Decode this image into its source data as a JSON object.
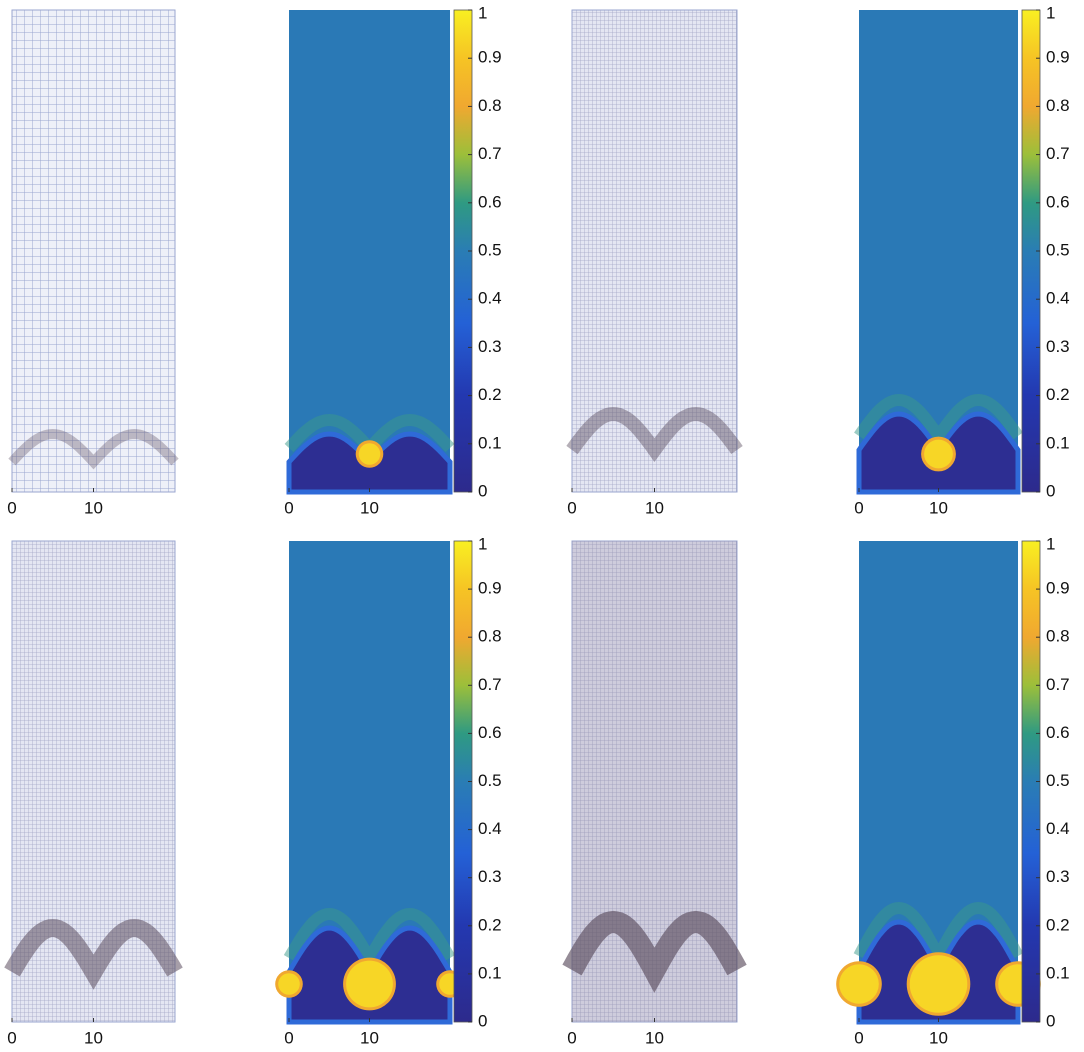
{
  "chart_data": [
    {
      "type": "mesh",
      "xlim": [
        0,
        20
      ],
      "xticks": [
        0,
        10
      ]
    },
    {
      "type": "heatmap",
      "xlim": [
        0,
        20
      ],
      "xticks": [
        0,
        10
      ],
      "clim": [
        0,
        1
      ],
      "colorbar_ticks": [
        0,
        0.1,
        0.2,
        0.3,
        0.4,
        0.5,
        0.6,
        0.7,
        0.8,
        0.9,
        1
      ]
    },
    {
      "type": "mesh",
      "xlim": [
        0,
        20
      ],
      "xticks": [
        0,
        10
      ]
    },
    {
      "type": "heatmap",
      "xlim": [
        0,
        20
      ],
      "xticks": [
        0,
        10
      ],
      "clim": [
        0,
        1
      ],
      "colorbar_ticks": [
        0,
        0.1,
        0.2,
        0.3,
        0.4,
        0.5,
        0.6,
        0.7,
        0.8,
        0.9,
        1
      ]
    },
    {
      "type": "mesh",
      "xlim": [
        0,
        20
      ],
      "xticks": [
        0,
        10
      ]
    },
    {
      "type": "heatmap",
      "xlim": [
        0,
        20
      ],
      "xticks": [
        0,
        10
      ],
      "clim": [
        0,
        1
      ],
      "colorbar_ticks": [
        0,
        0.1,
        0.2,
        0.3,
        0.4,
        0.5,
        0.6,
        0.7,
        0.8,
        0.9,
        1
      ]
    },
    {
      "type": "mesh",
      "xlim": [
        0,
        20
      ],
      "xticks": [
        0,
        10
      ]
    },
    {
      "type": "heatmap",
      "xlim": [
        0,
        20
      ],
      "xticks": [
        0,
        10
      ],
      "clim": [
        0,
        1
      ],
      "colorbar_ticks": [
        0,
        0.1,
        0.2,
        0.3,
        0.4,
        0.5,
        0.6,
        0.7,
        0.8,
        0.9,
        1
      ]
    }
  ]
}
